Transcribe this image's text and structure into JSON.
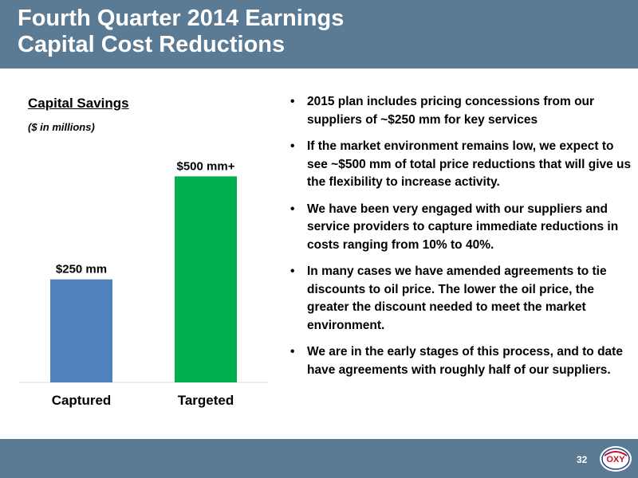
{
  "header": {
    "title_line1": "Fourth Quarter 2014 Earnings",
    "title_line2": "Capital Cost Reductions"
  },
  "chart_data": {
    "type": "bar",
    "title": "Capital Savings",
    "subtitle": "($ in millions)",
    "categories": [
      "Captured",
      "Targeted"
    ],
    "values": [
      250,
      500
    ],
    "data_labels": [
      "$250 mm",
      "$500 mm+"
    ],
    "colors": [
      "#4f81bd",
      "#00b050"
    ],
    "ylim": [
      0,
      580
    ],
    "grid": false,
    "legend": "none"
  },
  "bullets": [
    "2015 plan includes pricing concessions from our suppliers of ~$250 mm for key services",
    "If the market environment remains low, we expect to see ~$500 mm of total price reductions that will give us the flexibility to increase activity.",
    "We have been very engaged with our suppliers and service providers to capture immediate reductions in costs ranging from 10% to 40%.",
    "In many cases we have amended agreements to tie discounts to oil price.  The lower the oil price, the greater the discount needed to meet the market environment.",
    "We are in the early stages of this process, and to date have agreements with roughly half of our suppliers."
  ],
  "bullet_symbol": "•",
  "footer": {
    "page_number": "32",
    "logo_text": "OXY"
  }
}
